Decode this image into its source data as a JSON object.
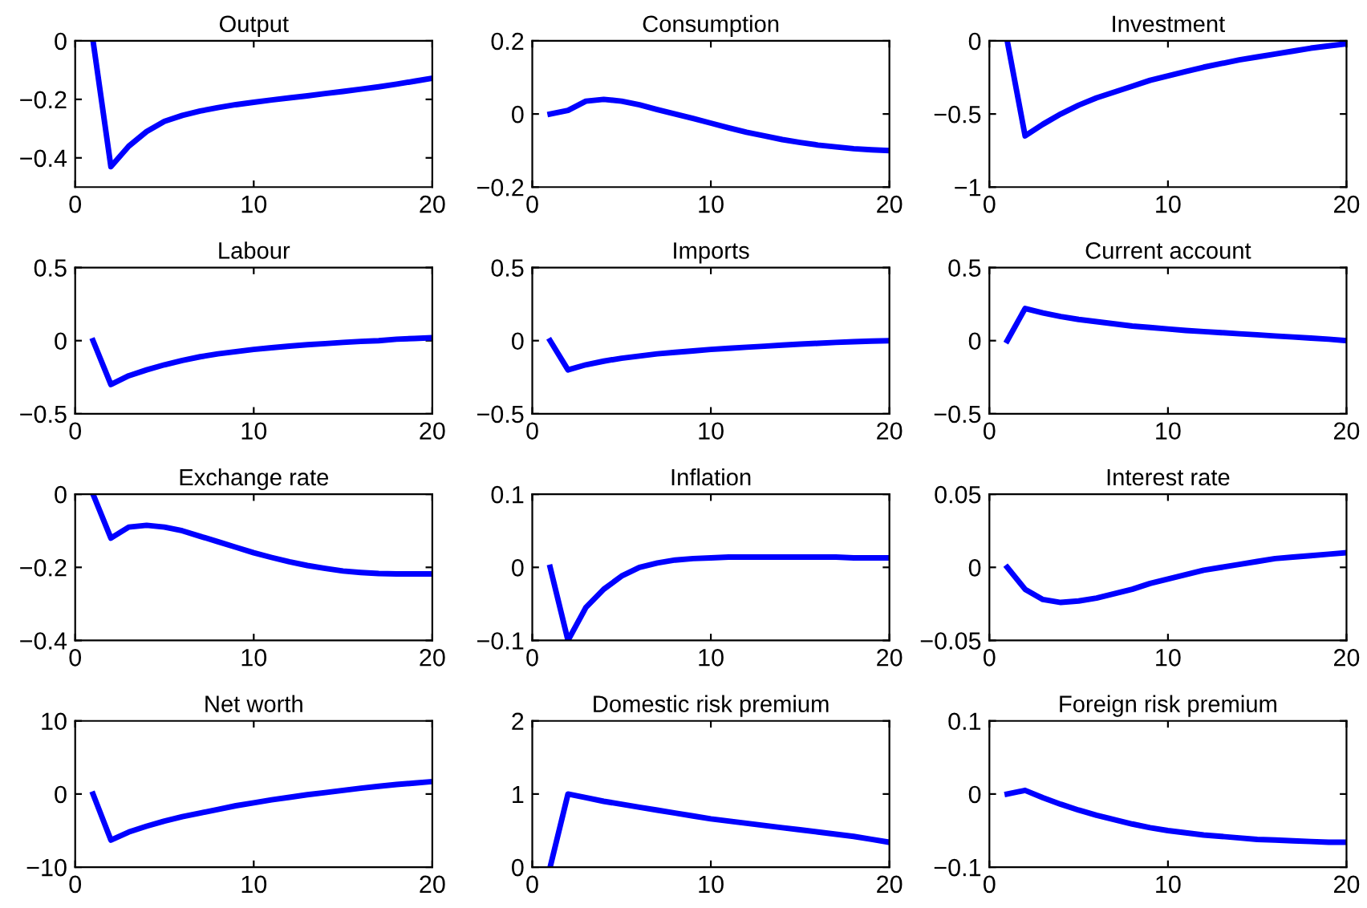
{
  "chart_data": [
    {
      "type": "line",
      "title": "Output",
      "x": [
        1,
        2,
        3,
        4,
        5,
        6,
        7,
        8,
        9,
        10,
        11,
        12,
        13,
        14,
        15,
        16,
        17,
        18,
        19,
        20
      ],
      "values": [
        0,
        -0.43,
        -0.36,
        -0.31,
        -0.275,
        -0.255,
        -0.24,
        -0.228,
        -0.218,
        -0.21,
        -0.202,
        -0.195,
        -0.188,
        -0.18,
        -0.173,
        -0.165,
        -0.157,
        -0.148,
        -0.138,
        -0.128
      ],
      "color": "#0000ff",
      "xlim": [
        0,
        20
      ],
      "xticks": [
        0,
        10,
        20
      ],
      "ylim": [
        -0.5,
        0
      ],
      "yticks": [
        -0.4,
        -0.2,
        0
      ]
    },
    {
      "type": "line",
      "title": "Consumption",
      "x": [
        1,
        2,
        3,
        4,
        5,
        6,
        7,
        8,
        9,
        10,
        11,
        12,
        13,
        14,
        15,
        16,
        17,
        18,
        19,
        20
      ],
      "values": [
        0,
        0.01,
        0.035,
        0.04,
        0.035,
        0.025,
        0.012,
        0,
        -0.012,
        -0.025,
        -0.038,
        -0.05,
        -0.06,
        -0.07,
        -0.078,
        -0.085,
        -0.09,
        -0.095,
        -0.098,
        -0.1
      ],
      "color": "#0000ff",
      "xlim": [
        0,
        20
      ],
      "xticks": [
        0,
        10,
        20
      ],
      "ylim": [
        -0.2,
        0.2
      ],
      "yticks": [
        -0.2,
        0,
        0.2
      ]
    },
    {
      "type": "line",
      "title": "Investment",
      "x": [
        1,
        2,
        3,
        4,
        5,
        6,
        7,
        8,
        9,
        10,
        11,
        12,
        13,
        14,
        15,
        16,
        17,
        18,
        19,
        20
      ],
      "values": [
        0,
        -0.65,
        -0.57,
        -0.5,
        -0.44,
        -0.39,
        -0.35,
        -0.31,
        -0.27,
        -0.24,
        -0.21,
        -0.18,
        -0.155,
        -0.13,
        -0.11,
        -0.09,
        -0.07,
        -0.05,
        -0.035,
        -0.02
      ],
      "color": "#0000ff",
      "xlim": [
        0,
        20
      ],
      "xticks": [
        0,
        10,
        20
      ],
      "ylim": [
        -1,
        0
      ],
      "yticks": [
        -1,
        -0.5,
        0
      ]
    },
    {
      "type": "line",
      "title": "Labour",
      "x": [
        1,
        2,
        3,
        4,
        5,
        6,
        7,
        8,
        9,
        10,
        11,
        12,
        13,
        14,
        15,
        16,
        17,
        18,
        19,
        20
      ],
      "values": [
        0,
        -0.3,
        -0.24,
        -0.2,
        -0.165,
        -0.135,
        -0.11,
        -0.09,
        -0.075,
        -0.06,
        -0.048,
        -0.037,
        -0.028,
        -0.02,
        -0.012,
        -0.005,
        0,
        0.01,
        0.015,
        0.02
      ],
      "color": "#0000ff",
      "xlim": [
        0,
        20
      ],
      "xticks": [
        0,
        10,
        20
      ],
      "ylim": [
        -0.5,
        0.5
      ],
      "yticks": [
        -0.5,
        0,
        0.5
      ]
    },
    {
      "type": "line",
      "title": "Imports",
      "x": [
        1,
        2,
        3,
        4,
        5,
        6,
        7,
        8,
        9,
        10,
        11,
        12,
        13,
        14,
        15,
        16,
        17,
        18,
        19,
        20
      ],
      "values": [
        0,
        -0.2,
        -0.165,
        -0.14,
        -0.12,
        -0.105,
        -0.09,
        -0.08,
        -0.07,
        -0.06,
        -0.052,
        -0.045,
        -0.038,
        -0.03,
        -0.024,
        -0.018,
        -0.012,
        -0.007,
        -0.003,
        0
      ],
      "color": "#0000ff",
      "xlim": [
        0,
        20
      ],
      "xticks": [
        0,
        10,
        20
      ],
      "ylim": [
        -0.5,
        0.5
      ],
      "yticks": [
        -0.5,
        0,
        0.5
      ]
    },
    {
      "type": "line",
      "title": "Current account",
      "x": [
        1,
        2,
        3,
        4,
        5,
        6,
        7,
        8,
        9,
        10,
        11,
        12,
        13,
        14,
        15,
        16,
        17,
        18,
        19,
        20
      ],
      "values": [
        0,
        0.22,
        0.19,
        0.165,
        0.145,
        0.13,
        0.115,
        0.1,
        0.09,
        0.08,
        0.07,
        0.062,
        0.055,
        0.047,
        0.04,
        0.032,
        0.025,
        0.018,
        0.01,
        0
      ],
      "color": "#0000ff",
      "xlim": [
        0,
        20
      ],
      "xticks": [
        0,
        10,
        20
      ],
      "ylim": [
        -0.5,
        0.5
      ],
      "yticks": [
        -0.5,
        0,
        0.5
      ]
    },
    {
      "type": "line",
      "title": "Exchange rate",
      "x": [
        1,
        2,
        3,
        4,
        5,
        6,
        7,
        8,
        9,
        10,
        11,
        12,
        13,
        14,
        15,
        16,
        17,
        18,
        19,
        20
      ],
      "values": [
        0,
        -0.12,
        -0.09,
        -0.085,
        -0.09,
        -0.1,
        -0.115,
        -0.13,
        -0.145,
        -0.16,
        -0.173,
        -0.185,
        -0.195,
        -0.203,
        -0.21,
        -0.214,
        -0.217,
        -0.218,
        -0.218,
        -0.218
      ],
      "color": "#0000ff",
      "xlim": [
        0,
        20
      ],
      "xticks": [
        0,
        10,
        20
      ],
      "ylim": [
        -0.4,
        0
      ],
      "yticks": [
        -0.4,
        -0.2,
        0
      ]
    },
    {
      "type": "line",
      "title": "Inflation",
      "x": [
        1,
        2,
        3,
        4,
        5,
        6,
        7,
        8,
        9,
        10,
        11,
        12,
        13,
        14,
        15,
        16,
        17,
        18,
        19,
        20
      ],
      "values": [
        0,
        -0.1,
        -0.055,
        -0.03,
        -0.012,
        0,
        0.006,
        0.01,
        0.012,
        0.013,
        0.014,
        0.014,
        0.014,
        0.014,
        0.014,
        0.014,
        0.014,
        0.013,
        0.013,
        0.013
      ],
      "color": "#0000ff",
      "xlim": [
        0,
        20
      ],
      "xticks": [
        0,
        10,
        20
      ],
      "ylim": [
        -0.1,
        0.1
      ],
      "yticks": [
        -0.1,
        0,
        0.1
      ]
    },
    {
      "type": "line",
      "title": "Interest rate",
      "x": [
        1,
        2,
        3,
        4,
        5,
        6,
        7,
        8,
        9,
        10,
        11,
        12,
        13,
        14,
        15,
        16,
        17,
        18,
        19,
        20
      ],
      "values": [
        0,
        -0.015,
        -0.022,
        -0.024,
        -0.023,
        -0.021,
        -0.018,
        -0.015,
        -0.011,
        -0.008,
        -0.005,
        -0.002,
        0,
        0.002,
        0.004,
        0.006,
        0.007,
        0.008,
        0.009,
        0.01
      ],
      "color": "#0000ff",
      "xlim": [
        0,
        20
      ],
      "xticks": [
        0,
        10,
        20
      ],
      "ylim": [
        -0.05,
        0.05
      ],
      "yticks": [
        -0.05,
        0,
        0.05
      ]
    },
    {
      "type": "line",
      "title": "Net worth",
      "x": [
        1,
        2,
        3,
        4,
        5,
        6,
        7,
        8,
        9,
        10,
        11,
        12,
        13,
        14,
        15,
        16,
        17,
        18,
        19,
        20
      ],
      "values": [
        0,
        -6.3,
        -5.2,
        -4.4,
        -3.7,
        -3.1,
        -2.6,
        -2.1,
        -1.6,
        -1.2,
        -0.8,
        -0.45,
        -0.1,
        0.2,
        0.5,
        0.8,
        1.05,
        1.3,
        1.5,
        1.7
      ],
      "color": "#0000ff",
      "xlim": [
        0,
        20
      ],
      "xticks": [
        0,
        10,
        20
      ],
      "ylim": [
        -10,
        10
      ],
      "yticks": [
        -10,
        0,
        10
      ]
    },
    {
      "type": "line",
      "title": "Domestic risk premium",
      "x": [
        1,
        2,
        3,
        4,
        5,
        6,
        7,
        8,
        9,
        10,
        11,
        12,
        13,
        14,
        15,
        16,
        17,
        18,
        19,
        20
      ],
      "values": [
        0,
        1.0,
        0.95,
        0.9,
        0.86,
        0.82,
        0.78,
        0.74,
        0.7,
        0.66,
        0.63,
        0.6,
        0.57,
        0.54,
        0.51,
        0.48,
        0.45,
        0.42,
        0.38,
        0.34
      ],
      "color": "#0000ff",
      "xlim": [
        0,
        20
      ],
      "xticks": [
        0,
        10,
        20
      ],
      "ylim": [
        0,
        2
      ],
      "yticks": [
        0,
        1,
        2
      ]
    },
    {
      "type": "line",
      "title": "Foreign risk premium",
      "x": [
        1,
        2,
        3,
        4,
        5,
        6,
        7,
        8,
        9,
        10,
        11,
        12,
        13,
        14,
        15,
        16,
        17,
        18,
        19,
        20
      ],
      "values": [
        0,
        0.005,
        -0.005,
        -0.014,
        -0.022,
        -0.029,
        -0.035,
        -0.041,
        -0.046,
        -0.05,
        -0.053,
        -0.056,
        -0.058,
        -0.06,
        -0.062,
        -0.063,
        -0.064,
        -0.065,
        -0.066,
        -0.066
      ],
      "color": "#0000ff",
      "xlim": [
        0,
        20
      ],
      "xticks": [
        0,
        10,
        20
      ],
      "ylim": [
        -0.1,
        0.1
      ],
      "yticks": [
        -0.1,
        0,
        0.1
      ]
    }
  ]
}
